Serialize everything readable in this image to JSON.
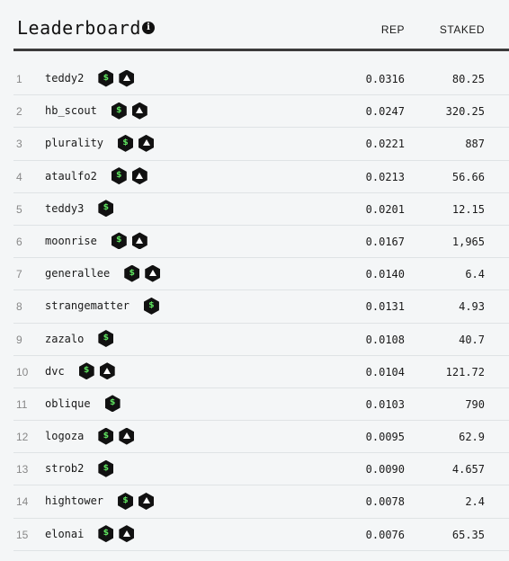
{
  "header": {
    "title": "Leaderboard",
    "info_icon": "i",
    "col_rep": "REP",
    "col_staked": "STAKED"
  },
  "icons": {
    "dollar_symbol": "$",
    "dollar_color": "#5fe35f",
    "badge_bg": "#111111"
  },
  "rows": [
    {
      "rank": "1",
      "name": "teddy2",
      "badges": [
        "dollar",
        "hat"
      ],
      "rep": "0.0316",
      "staked": "80.25"
    },
    {
      "rank": "2",
      "name": "hb_scout",
      "badges": [
        "dollar",
        "hat"
      ],
      "rep": "0.0247",
      "staked": "320.25"
    },
    {
      "rank": "3",
      "name": "plurality",
      "badges": [
        "dollar",
        "hat"
      ],
      "rep": "0.0221",
      "staked": "887"
    },
    {
      "rank": "4",
      "name": "ataulfo2",
      "badges": [
        "dollar",
        "hat"
      ],
      "rep": "0.0213",
      "staked": "56.66"
    },
    {
      "rank": "5",
      "name": "teddy3",
      "badges": [
        "dollar"
      ],
      "rep": "0.0201",
      "staked": "12.15"
    },
    {
      "rank": "6",
      "name": "moonrise",
      "badges": [
        "dollar",
        "hat"
      ],
      "rep": "0.0167",
      "staked": "1,965"
    },
    {
      "rank": "7",
      "name": "generallee",
      "badges": [
        "dollar",
        "hat"
      ],
      "rep": "0.0140",
      "staked": "6.4"
    },
    {
      "rank": "8",
      "name": "strangematter",
      "badges": [
        "dollar"
      ],
      "rep": "0.0131",
      "staked": "4.93"
    },
    {
      "rank": "9",
      "name": "zazalo",
      "badges": [
        "dollar"
      ],
      "rep": "0.0108",
      "staked": "40.7"
    },
    {
      "rank": "10",
      "name": "dvc",
      "badges": [
        "dollar",
        "hat"
      ],
      "rep": "0.0104",
      "staked": "121.72"
    },
    {
      "rank": "11",
      "name": "oblique",
      "badges": [
        "dollar"
      ],
      "rep": "0.0103",
      "staked": "790"
    },
    {
      "rank": "12",
      "name": "logoza",
      "badges": [
        "dollar",
        "hat"
      ],
      "rep": "0.0095",
      "staked": "62.9"
    },
    {
      "rank": "13",
      "name": "strob2",
      "badges": [
        "dollar"
      ],
      "rep": "0.0090",
      "staked": "4.657"
    },
    {
      "rank": "14",
      "name": "hightower",
      "badges": [
        "dollar",
        "hat"
      ],
      "rep": "0.0078",
      "staked": "2.4"
    },
    {
      "rank": "15",
      "name": "elonai",
      "badges": [
        "dollar",
        "hat"
      ],
      "rep": "0.0076",
      "staked": "65.35"
    }
  ]
}
